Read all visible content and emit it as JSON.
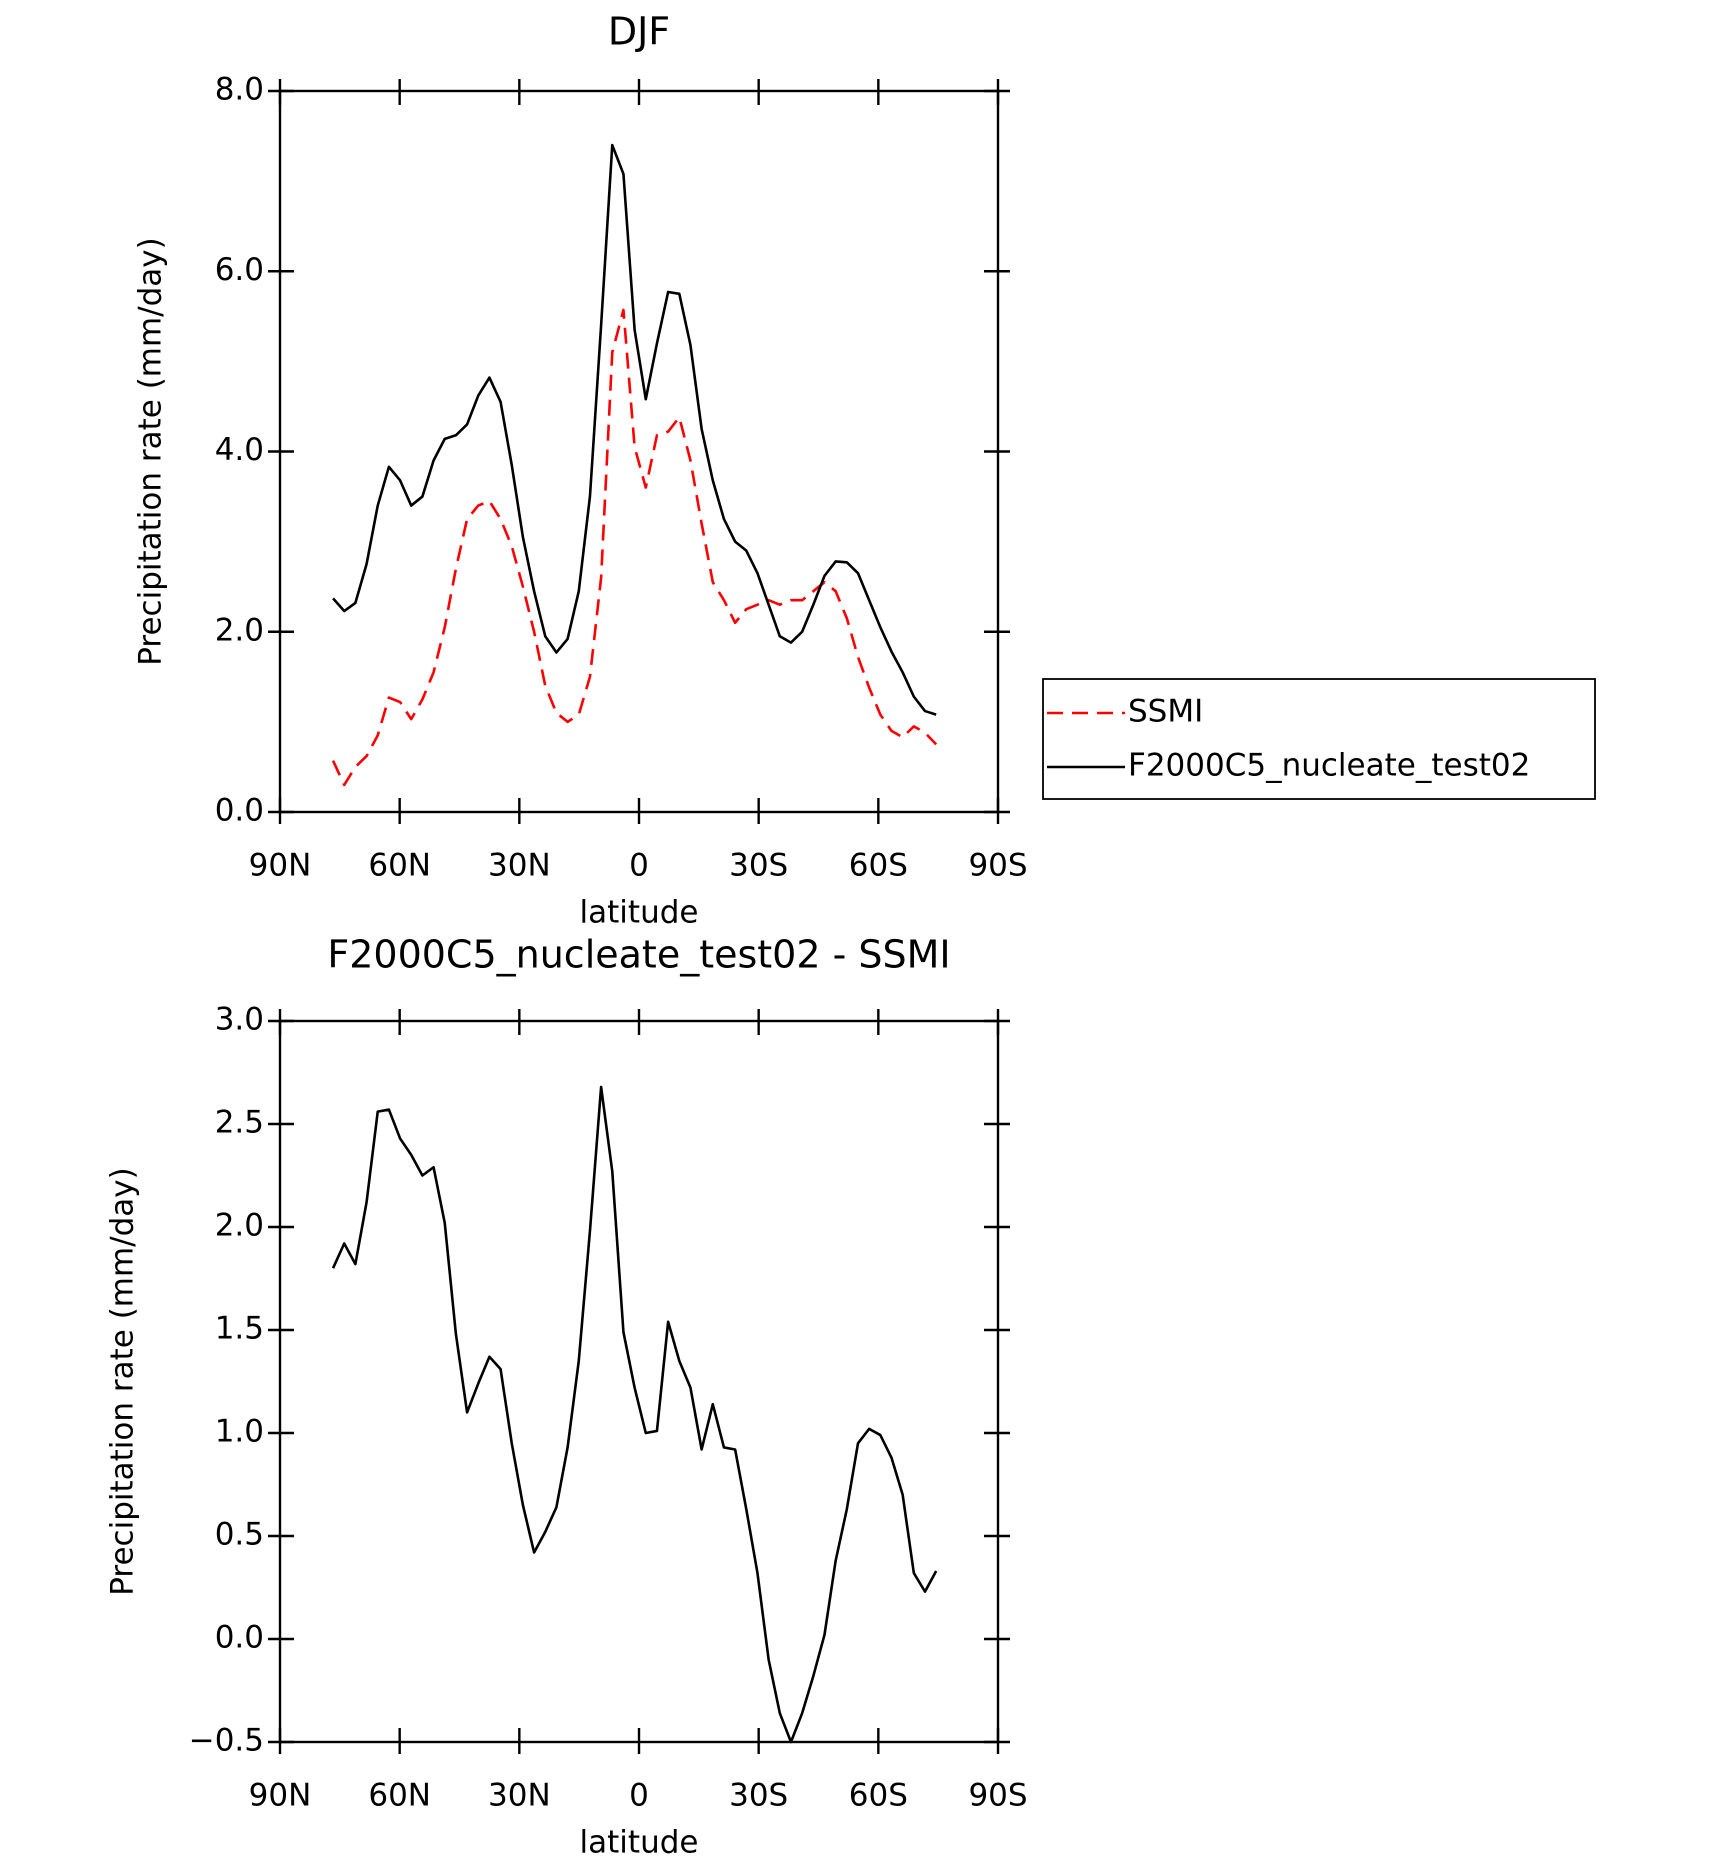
{
  "chart_data": [
    {
      "type": "line",
      "title": "DJF",
      "x_label": "latitude",
      "y_label": "Precipitation rate (mm/day)",
      "x": [
        76.7,
        73.9,
        71.1,
        68.3,
        65.5,
        62.7,
        59.9,
        57.1,
        54.3,
        51.5,
        48.7,
        45.9,
        43.1,
        40.3,
        37.5,
        34.7,
        31.9,
        29.1,
        26.3,
        23.5,
        20.7,
        17.9,
        15.1,
        12.3,
        9.5,
        6.7,
        3.9,
        1.1,
        -1.7,
        -4.5,
        -7.3,
        -10.1,
        -12.9,
        -15.7,
        -18.5,
        -21.3,
        -24.1,
        -26.9,
        -29.7,
        -32.5,
        -35.3,
        -38.1,
        -40.9,
        -43.7,
        -46.5,
        -49.3,
        -52.1,
        -54.9,
        -57.7,
        -60.5,
        -63.3,
        -66.1,
        -68.9,
        -71.7,
        -74.5
      ],
      "series": [
        {
          "name": "SSMI",
          "color": "#ff0000",
          "line_style": "dashed",
          "values": [
            0.57,
            0.3,
            0.5,
            0.62,
            0.85,
            1.27,
            1.22,
            1.03,
            1.25,
            1.55,
            2.05,
            2.7,
            3.25,
            3.4,
            3.45,
            3.25,
            2.95,
            2.5,
            2.0,
            1.4,
            1.1,
            1.0,
            1.08,
            1.5,
            2.6,
            5.1,
            5.57,
            4.05,
            3.6,
            4.18,
            4.22,
            4.38,
            3.9,
            3.2,
            2.55,
            2.35,
            2.1,
            2.25,
            2.3,
            2.35,
            2.3,
            2.35,
            2.35,
            2.45,
            2.55,
            2.45,
            2.15,
            1.72,
            1.38,
            1.08,
            0.9,
            0.83,
            0.95,
            0.88,
            0.75
          ]
        },
        {
          "name": "F2000C5_nucleate_test02",
          "color": "#000000",
          "line_style": "solid",
          "values": [
            2.37,
            2.23,
            2.32,
            2.75,
            3.4,
            3.83,
            3.68,
            3.4,
            3.5,
            3.9,
            4.14,
            4.18,
            4.3,
            4.62,
            4.82,
            4.55,
            3.85,
            3.05,
            2.45,
            1.95,
            1.77,
            1.92,
            2.45,
            3.5,
            5.4,
            7.4,
            7.08,
            5.35,
            4.58,
            5.2,
            5.77,
            5.75,
            5.18,
            4.25,
            3.68,
            3.25,
            3.0,
            2.9,
            2.65,
            2.3,
            1.95,
            1.88,
            2.0,
            2.3,
            2.62,
            2.78,
            2.77,
            2.65,
            2.35,
            2.05,
            1.78,
            1.55,
            1.28,
            1.12,
            1.08
          ]
        }
      ],
      "xlim": [
        90,
        -90
      ],
      "xticks": [
        {
          "value": 90,
          "label": "90N"
        },
        {
          "value": 60,
          "label": "60N"
        },
        {
          "value": 30,
          "label": "30N"
        },
        0,
        {
          "value": -30,
          "label": "30S"
        },
        {
          "value": -60,
          "label": "60S"
        },
        {
          "value": -90,
          "label": "90S"
        }
      ],
      "ylim": [
        0,
        8
      ],
      "yticks": [
        {
          "value": 0,
          "label": "0.0"
        },
        {
          "value": 2,
          "label": "2.0"
        },
        {
          "value": 4,
          "label": "4.0"
        },
        {
          "value": 6,
          "label": "6.0"
        },
        {
          "value": 8,
          "label": "8.0"
        }
      ],
      "legend": "outside-right"
    },
    {
      "type": "line",
      "title": "F2000C5_nucleate_test02 - SSMI",
      "x_label": "latitude",
      "y_label": "Precipitation rate (mm/day)",
      "x": [
        76.7,
        73.9,
        71.1,
        68.3,
        65.5,
        62.7,
        59.9,
        57.1,
        54.3,
        51.5,
        48.7,
        45.9,
        43.1,
        40.3,
        37.5,
        34.7,
        31.9,
        29.1,
        26.3,
        23.5,
        20.7,
        17.9,
        15.1,
        12.3,
        9.5,
        6.7,
        3.9,
        1.1,
        -1.7,
        -4.5,
        -7.3,
        -10.1,
        -12.9,
        -15.7,
        -18.5,
        -21.3,
        -24.1,
        -26.9,
        -29.7,
        -32.5,
        -35.3,
        -38.1,
        -40.9,
        -43.7,
        -46.5,
        -49.3,
        -52.1,
        -54.9,
        -57.7,
        -60.5,
        -63.3,
        -66.1,
        -68.9,
        -71.7,
        -74.5
      ],
      "color": "#000000",
      "values": [
        1.8,
        1.92,
        1.82,
        2.12,
        2.56,
        2.57,
        2.43,
        2.35,
        2.25,
        2.29,
        2.02,
        1.48,
        1.1,
        1.24,
        1.37,
        1.31,
        0.95,
        0.65,
        0.42,
        0.52,
        0.64,
        0.93,
        1.35,
        1.98,
        2.68,
        2.27,
        1.49,
        1.22,
        1.0,
        1.01,
        1.54,
        1.35,
        1.22,
        0.92,
        1.14,
        0.93,
        0.92,
        0.63,
        0.32,
        -0.1,
        -0.36,
        -0.5,
        -0.36,
        -0.18,
        0.02,
        0.38,
        0.63,
        0.95,
        1.02,
        0.99,
        0.88,
        0.7,
        0.32,
        0.23,
        0.33
      ],
      "xlim": [
        90,
        -90
      ],
      "xticks": [
        {
          "value": 90,
          "label": "90N"
        },
        {
          "value": 60,
          "label": "60N"
        },
        {
          "value": 30,
          "label": "30N"
        },
        0,
        {
          "value": -30,
          "label": "30S"
        },
        {
          "value": -60,
          "label": "60S"
        },
        {
          "value": -90,
          "label": "90S"
        }
      ],
      "ylim": [
        -0.5,
        3
      ],
      "yticks": [
        {
          "value": -0.5,
          "label": "−0.5"
        },
        {
          "value": 0,
          "label": "0.0"
        },
        {
          "value": 0.5,
          "label": "0.5"
        },
        {
          "value": 1,
          "label": "1.0"
        },
        {
          "value": 1.5,
          "label": "1.5"
        },
        {
          "value": 2,
          "label": "2.0"
        },
        {
          "value": 2.5,
          "label": "2.5"
        },
        {
          "value": 3,
          "label": "3.0"
        }
      ]
    }
  ]
}
